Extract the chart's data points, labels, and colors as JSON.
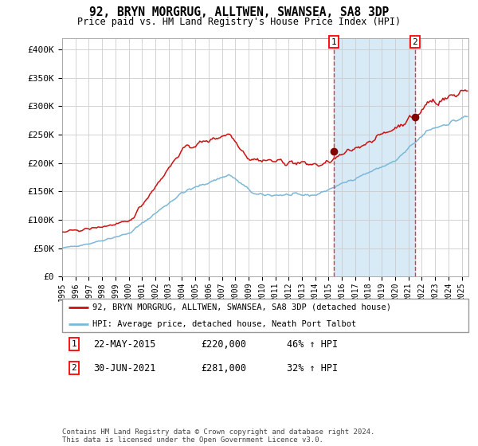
{
  "title": "92, BRYN MORGRUG, ALLTWEN, SWANSEA, SA8 3DP",
  "subtitle": "Price paid vs. HM Land Registry's House Price Index (HPI)",
  "ylim": [
    0,
    420000
  ],
  "yticks": [
    0,
    50000,
    100000,
    150000,
    200000,
    250000,
    300000,
    350000,
    400000
  ],
  "ytick_labels": [
    "£0",
    "£50K",
    "£100K",
    "£150K",
    "£200K",
    "£250K",
    "£300K",
    "£350K",
    "£400K"
  ],
  "hpi_color": "#7ab8d9",
  "price_color": "#cc1111",
  "marker_color": "#880000",
  "vline_color": "#ee3333",
  "shade_color": "#d8eaf5",
  "grid_color": "#cccccc",
  "bg_color": "#ffffff",
  "legend_border_color": "#999999",
  "legend_entry1": "92, BRYN MORGRUG, ALLTWEN, SWANSEA, SA8 3DP (detached house)",
  "legend_entry2": "HPI: Average price, detached house, Neath Port Talbot",
  "sale1_date": "22-MAY-2015",
  "sale1_price": "£220,000",
  "sale1_hpi": "46% ↑ HPI",
  "sale2_date": "30-JUN-2021",
  "sale2_price": "£281,000",
  "sale2_hpi": "32% ↑ HPI",
  "footer": "Contains HM Land Registry data © Crown copyright and database right 2024.\nThis data is licensed under the Open Government Licence v3.0.",
  "sale1_x": 2015.38,
  "sale1_y": 220000,
  "sale2_x": 2021.49,
  "sale2_y": 281000,
  "xmin": 1995.0,
  "xmax": 2025.5
}
